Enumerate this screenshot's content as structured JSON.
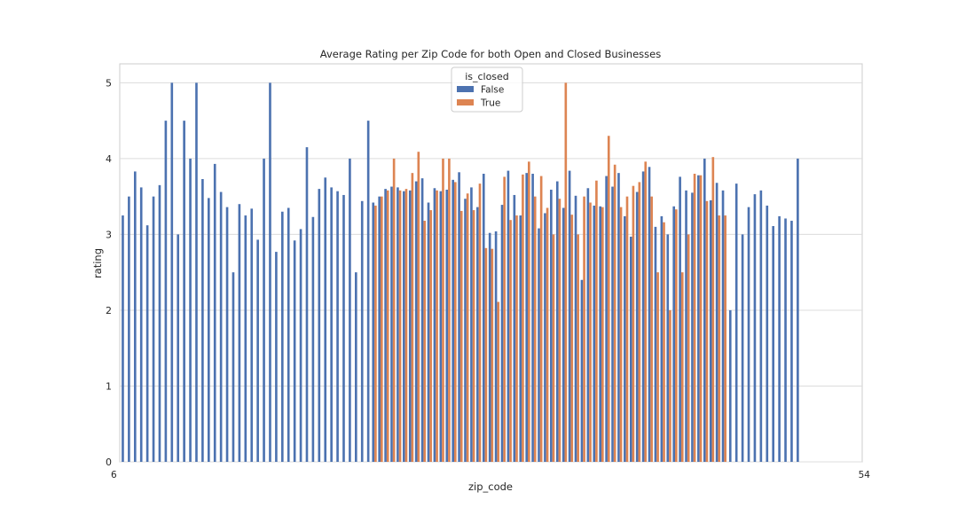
{
  "chart_data": {
    "type": "bar",
    "title": "Average Rating per Zip Code for both Open and Closed Businesses",
    "xlabel": "zip_code",
    "ylabel": "rating",
    "ylim": [
      0,
      5.25
    ],
    "yticks": [
      0,
      1,
      2,
      3,
      4,
      5
    ],
    "grid": "y",
    "legend": {
      "title": "is_closed",
      "placement": "top-center"
    },
    "x_tick_label_first": "6",
    "x_tick_label_last": "54",
    "categories_count": 121,
    "series": [
      {
        "name": "False",
        "color": "#4c72b0",
        "values": [
          3.25,
          3.5,
          3.83,
          3.62,
          3.12,
          3.5,
          3.65,
          4.5,
          5.0,
          3.0,
          4.5,
          4.0,
          5.0,
          3.73,
          3.48,
          3.93,
          3.56,
          3.36,
          2.5,
          3.4,
          3.25,
          3.34,
          2.93,
          4.0,
          5.0,
          2.77,
          3.3,
          3.35,
          2.92,
          3.07,
          4.15,
          3.23,
          3.6,
          3.75,
          3.62,
          3.57,
          3.52,
          4.0,
          2.5,
          3.44,
          4.5,
          3.42,
          3.5,
          3.6,
          3.63,
          3.62,
          3.57,
          3.58,
          3.7,
          3.74,
          3.42,
          3.61,
          3.57,
          3.59,
          3.72,
          3.82,
          3.47,
          3.62,
          3.36,
          3.8,
          3.02,
          3.04,
          3.39,
          3.84,
          3.52,
          3.25,
          3.81,
          3.8,
          3.08,
          3.28,
          3.59,
          3.7,
          3.35,
          3.84,
          3.51,
          2.4,
          3.61,
          3.38,
          3.37,
          3.77,
          3.63,
          3.81,
          3.24,
          2.97,
          3.56,
          3.83,
          3.89,
          3.1,
          3.24,
          3.0,
          3.37,
          3.76,
          3.58,
          3.55,
          3.78,
          4.0,
          3.45,
          3.68,
          3.58,
          2.0,
          3.67,
          3.0,
          3.36,
          3.53,
          3.58,
          3.38,
          3.11,
          3.24,
          3.21,
          3.18,
          4.0,
          null,
          null,
          null,
          null,
          null,
          null,
          null,
          null,
          null,
          null
        ],
        "closed_values": [
          null,
          null,
          null,
          null,
          null,
          null,
          null,
          null,
          null,
          null,
          null,
          null,
          null,
          null,
          null,
          null,
          null,
          null,
          null,
          null,
          null,
          null,
          null,
          null,
          null,
          null,
          null,
          null,
          null,
          null,
          null,
          null,
          null,
          null,
          null,
          null,
          null,
          null,
          null,
          null,
          null,
          3.38,
          3.5,
          3.58,
          4.0,
          3.58,
          3.6,
          3.81,
          4.09,
          3.18,
          3.32,
          3.58,
          4.0,
          4.0,
          3.69,
          3.31,
          3.54,
          3.32,
          3.67,
          2.82,
          2.81,
          2.11,
          3.76,
          3.19,
          3.25,
          3.79,
          3.96,
          3.5,
          3.77,
          3.35,
          3.0,
          3.47,
          5.0,
          3.26,
          3.0,
          3.5,
          3.42,
          3.71,
          3.36,
          4.3,
          3.92,
          3.36,
          3.5,
          3.64,
          3.69,
          3.96,
          3.5,
          2.5,
          3.16,
          2.0,
          3.33,
          2.5,
          3.0,
          3.8,
          3.78,
          3.44,
          4.02,
          3.25,
          3.25,
          null,
          null,
          null,
          null,
          null,
          null,
          null,
          null,
          null,
          null,
          null,
          null,
          null,
          null,
          null,
          null,
          null,
          null,
          null,
          null
        ]
      },
      {
        "name": "True",
        "color": "#dd8452",
        "values": []
      }
    ]
  }
}
